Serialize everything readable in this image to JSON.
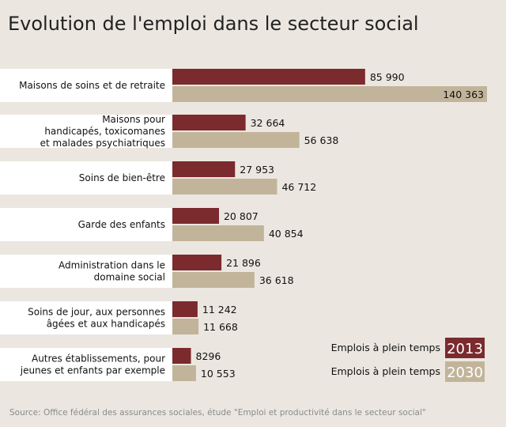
{
  "chart_data": {
    "type": "bar",
    "orientation": "horizontal",
    "title": "Evolution de l'emploi dans le secteur social",
    "categories": [
      [
        "Maisons de soins et de retraite"
      ],
      [
        "Maisons pour",
        "handicapés, toxicomanes",
        "et malades psychiatriques"
      ],
      [
        "Soins de bien-être"
      ],
      [
        "Garde des enfants"
      ],
      [
        "Administration dans le",
        "domaine social"
      ],
      [
        "Soins de jour, aux personnes",
        "âgées et aux handicapés"
      ],
      [
        "Autres établissements, pour",
        "jeunes et enfants par exemple"
      ]
    ],
    "series": [
      {
        "name": "2013",
        "legend_label": "Emplois à plein temps",
        "color": "#7b2a2e",
        "values": [
          85990,
          32664,
          27953,
          20807,
          21896,
          11242,
          8296
        ],
        "value_labels": [
          "85 990",
          "32 664",
          "27 953",
          "20 807",
          "21 896",
          "11 242",
          "8296"
        ]
      },
      {
        "name": "2030",
        "legend_label": "Emplois à plein temps",
        "color": "#c2b49a",
        "values": [
          140363,
          56638,
          46712,
          40854,
          36618,
          11668,
          10553
        ],
        "value_labels": [
          "140 363",
          "56 638",
          "46 712",
          "40 854",
          "36 618",
          "11 668",
          "10 553"
        ]
      }
    ],
    "xlim": [
      0,
      140363
    ],
    "legend_position": "bottom-right",
    "source": "Source: Office fédéral des assurances sociales, étude \"Emploi et productivité dans le secteur social\""
  }
}
